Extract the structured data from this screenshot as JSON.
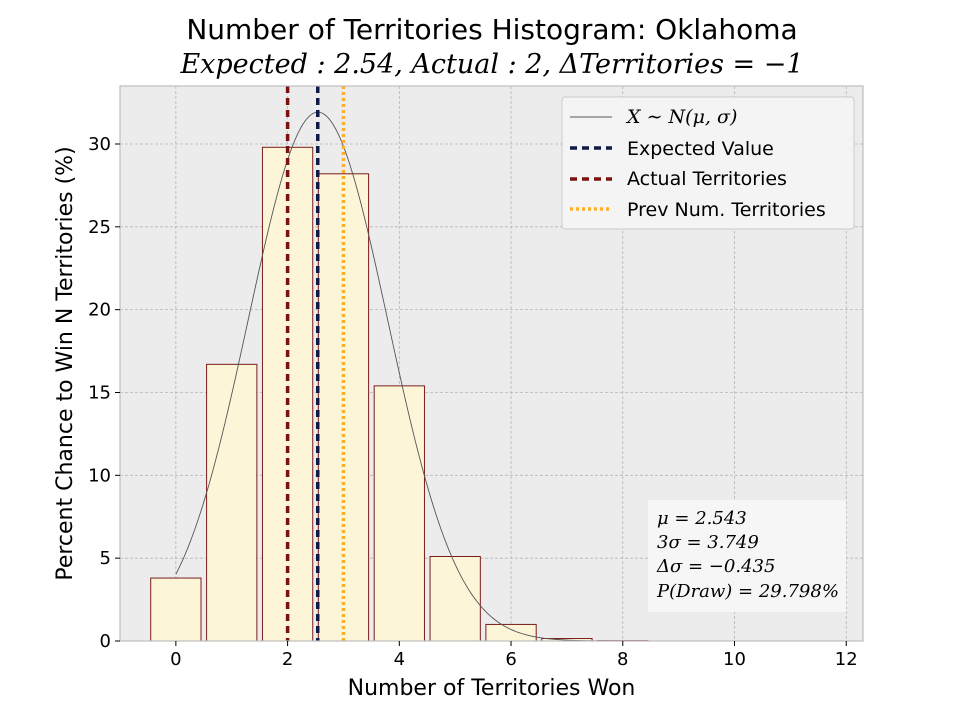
{
  "chart_data": {
    "type": "bar",
    "title": "Number of Territories Histogram: Oklahoma",
    "subtitle": "Expected : 2.54, Actual : 2, ΔTerritories = −1",
    "xlabel": "Number of Territories Won",
    "ylabel": "Percent Chance to Win N Territories (%)",
    "xlim": [
      -1,
      12.3
    ],
    "ylim": [
      0,
      33.5
    ],
    "xticks": [
      0,
      2,
      4,
      6,
      8,
      10,
      12
    ],
    "yticks": [
      0,
      5,
      10,
      15,
      20,
      25,
      30
    ],
    "grid": true,
    "categories": [
      0,
      1,
      2,
      3,
      4,
      5,
      6,
      7,
      8,
      9,
      10,
      11
    ],
    "values": [
      3.8,
      16.7,
      29.8,
      28.2,
      15.4,
      5.1,
      1.0,
      0.15,
      0.02,
      0.0,
      0.0,
      0.0
    ],
    "normal_curve": {
      "mu": 2.543,
      "sigma": 1.2497,
      "x_range": [
        0,
        11
      ]
    },
    "vlines": {
      "expected": 2.54,
      "actual": 2,
      "previous": 3
    },
    "legend": {
      "position": "top-right",
      "entries": [
        {
          "key": "normal",
          "label": "X ∼ N(μ, σ)",
          "math": true
        },
        {
          "key": "expected",
          "label": "Expected Value",
          "math": false
        },
        {
          "key": "actual",
          "label": "Actual Territories",
          "math": false
        },
        {
          "key": "previous",
          "label": "Prev Num. Territories",
          "math": false
        }
      ]
    },
    "stats": {
      "position": "bottom-right",
      "lines": [
        "μ = 2.543",
        "3σ = 3.749",
        "Δσ = −0.435",
        "P(Draw) = 29.798%"
      ]
    },
    "colors": {
      "bar_fill": "#fcf5d8",
      "bar_edge": "#7a1c1c",
      "curve": "#555555",
      "expected": "#0f1a45",
      "actual": "#7a1212",
      "previous": "#fdb025",
      "plot_bg": "#ececec",
      "grid": "#b5b5b5"
    }
  }
}
